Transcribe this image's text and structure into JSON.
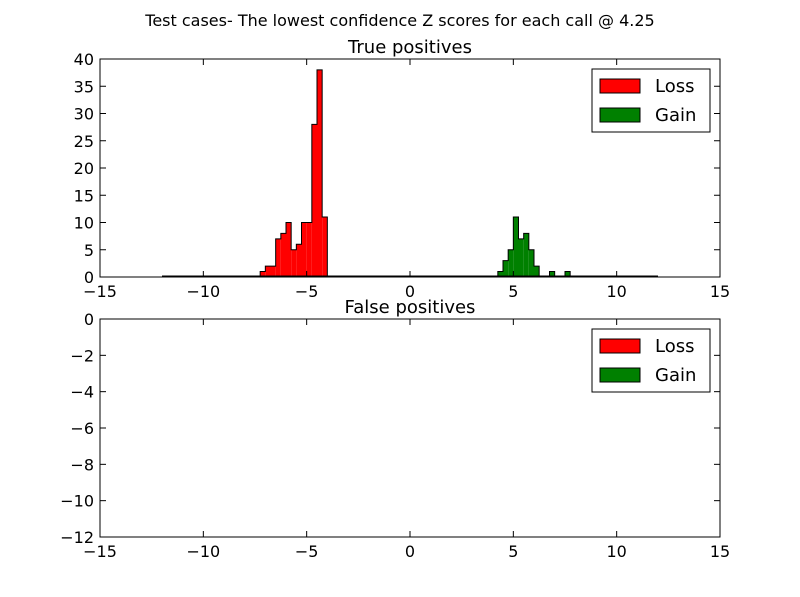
{
  "figure": {
    "suptitle": "Test cases- The lowest confidence Z scores for each call @ 4.25"
  },
  "colors": {
    "loss": "#ff0000",
    "gain": "#008000",
    "edge": "#000000",
    "background": "#ffffff"
  },
  "chart_data": [
    {
      "type": "histogram",
      "title": "True positives",
      "xlabel": "",
      "ylabel": "",
      "xlim": [
        -15,
        15
      ],
      "ylim": [
        0,
        40
      ],
      "xticks": [
        -15,
        -10,
        -5,
        0,
        5,
        10,
        15
      ],
      "yticks": [
        0,
        5,
        10,
        15,
        20,
        25,
        30,
        35,
        40
      ],
      "xtick_labels": [
        "−15",
        "−10",
        "−5",
        "0",
        "5",
        "10",
        "15"
      ],
      "ytick_labels": [
        "0",
        "5",
        "10",
        "15",
        "20",
        "25",
        "30",
        "35",
        "40"
      ],
      "grid": false,
      "legend_position": "top-right",
      "bin_range": [
        -12,
        12
      ],
      "bin_width": 0.25,
      "series": [
        {
          "name": "Loss",
          "color": "#ff0000",
          "bins": [
            {
              "x": -7.25,
              "count": 1
            },
            {
              "x": -7.0,
              "count": 2
            },
            {
              "x": -6.75,
              "count": 2
            },
            {
              "x": -6.5,
              "count": 7
            },
            {
              "x": -6.25,
              "count": 8
            },
            {
              "x": -6.0,
              "count": 10
            },
            {
              "x": -5.75,
              "count": 5
            },
            {
              "x": -5.5,
              "count": 6
            },
            {
              "x": -5.25,
              "count": 10
            },
            {
              "x": -5.0,
              "count": 10
            },
            {
              "x": -4.75,
              "count": 28
            },
            {
              "x": -4.5,
              "count": 38
            },
            {
              "x": -4.25,
              "count": 11
            }
          ]
        },
        {
          "name": "Gain",
          "color": "#008000",
          "bins": [
            {
              "x": 4.25,
              "count": 1
            },
            {
              "x": 4.5,
              "count": 3
            },
            {
              "x": 4.75,
              "count": 5
            },
            {
              "x": 5.0,
              "count": 11
            },
            {
              "x": 5.25,
              "count": 7
            },
            {
              "x": 5.5,
              "count": 8
            },
            {
              "x": 5.75,
              "count": 5
            },
            {
              "x": 6.0,
              "count": 2
            },
            {
              "x": 6.75,
              "count": 1
            },
            {
              "x": 7.5,
              "count": 1
            }
          ]
        }
      ]
    },
    {
      "type": "histogram",
      "title": "False positives",
      "xlabel": "",
      "ylabel": "",
      "xlim": [
        -15,
        15
      ],
      "ylim": [
        -12,
        0
      ],
      "xticks": [
        -15,
        -10,
        -5,
        0,
        5,
        10,
        15
      ],
      "yticks": [
        -12,
        -10,
        -8,
        -6,
        -4,
        -2,
        0
      ],
      "xtick_labels": [
        "−15",
        "−10",
        "−5",
        "0",
        "5",
        "10",
        "15"
      ],
      "ytick_labels": [
        "−12",
        "−10",
        "−8",
        "−6",
        "−4",
        "−2",
        "0"
      ],
      "grid": false,
      "legend_position": "top-right",
      "series": [
        {
          "name": "Loss",
          "color": "#ff0000",
          "bins": []
        },
        {
          "name": "Gain",
          "color": "#008000",
          "bins": []
        }
      ]
    }
  ]
}
